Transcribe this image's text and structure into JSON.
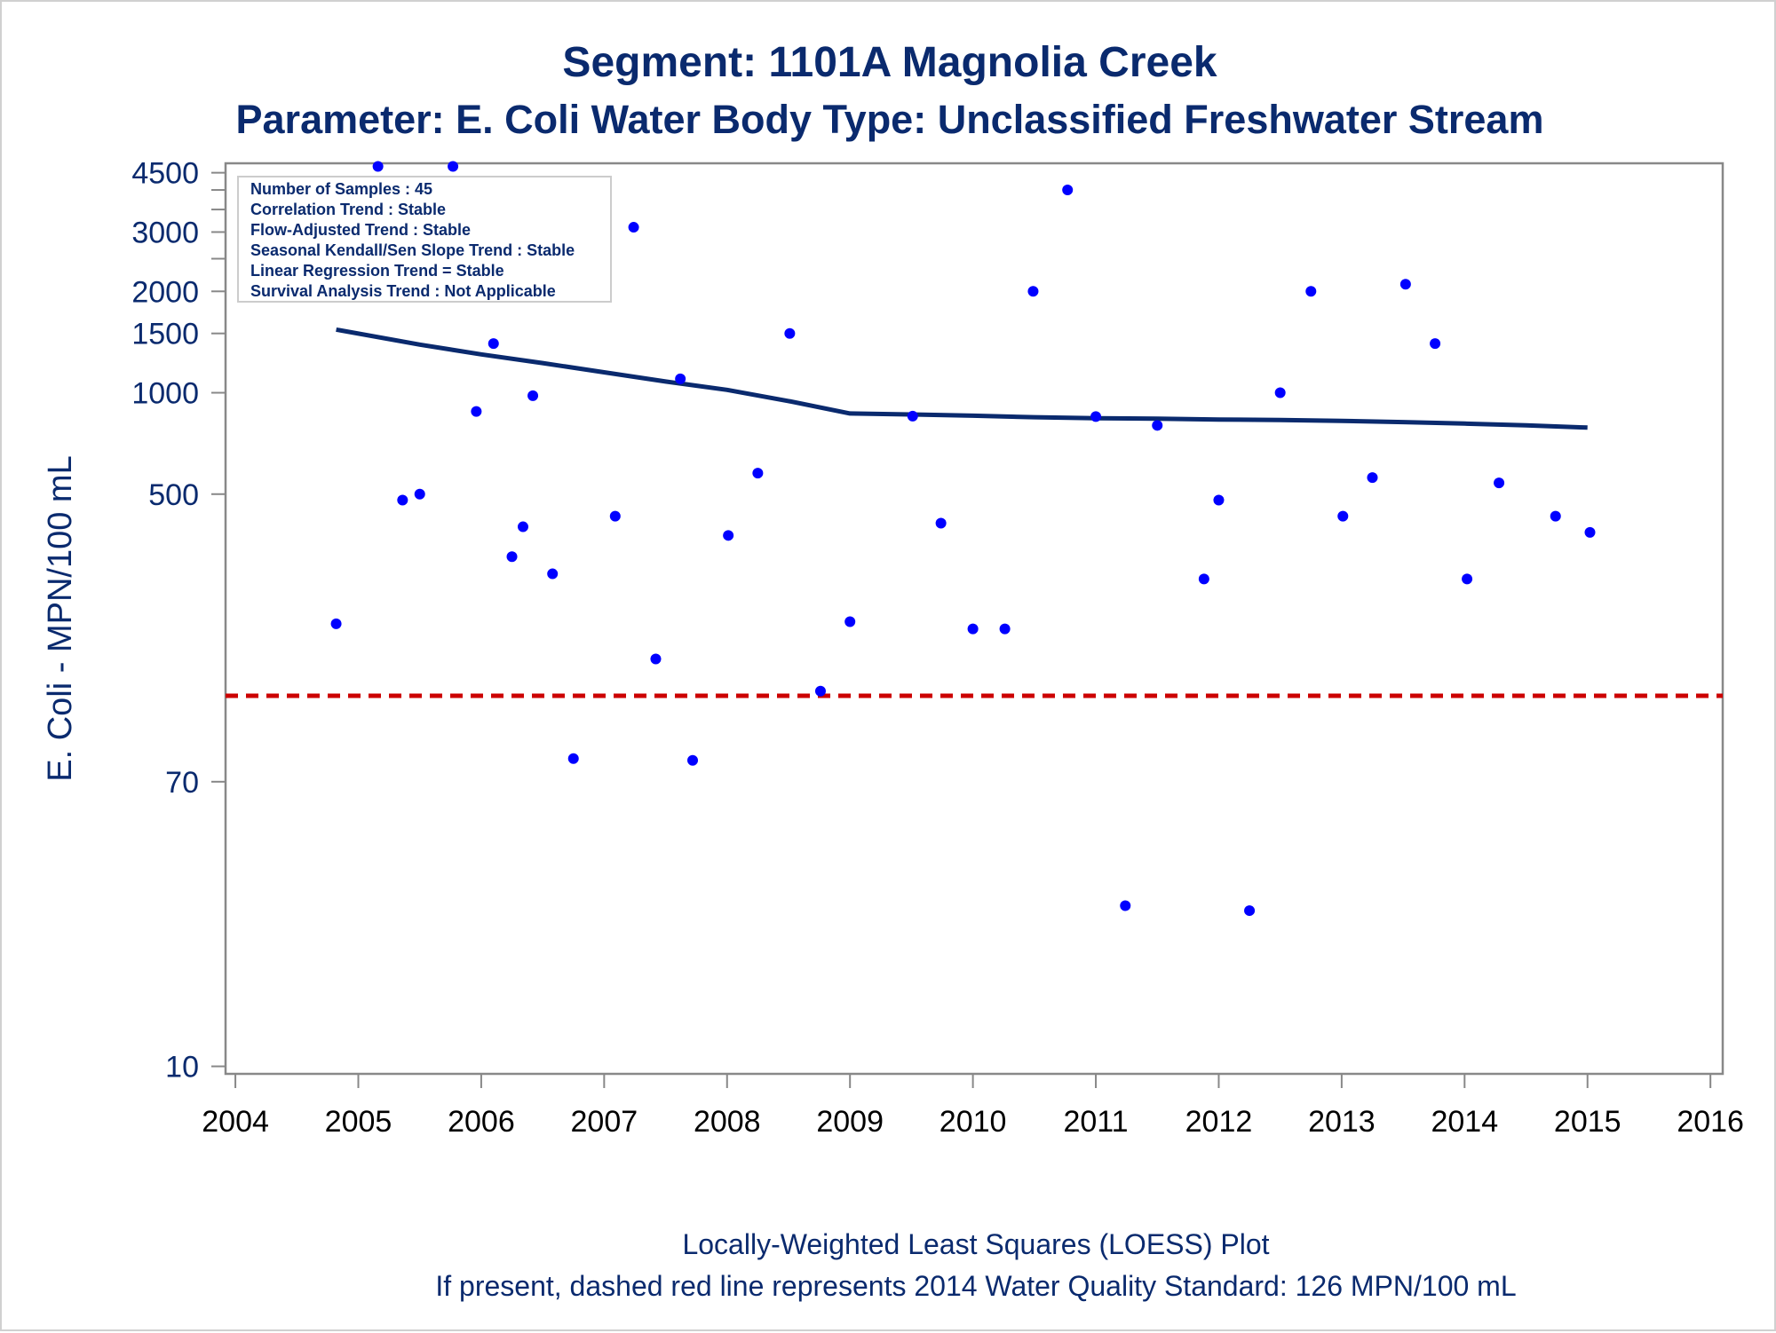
{
  "chart_data": {
    "type": "scatter",
    "title": "Segment: 1101A  Magnolia Creek",
    "subtitle": "Parameter: E. Coli   Water Body Type: Unclassified Freshwater Stream",
    "ylabel": "E. Coli - MPN/100 mL",
    "xlabel": "",
    "yscale": "log",
    "ylim": [
      9.5,
      4800
    ],
    "xlim": [
      2003.92,
      2016.1
    ],
    "y_ticks": [
      10,
      70,
      500,
      1000,
      1500,
      2000,
      3000,
      4500
    ],
    "y_ticks_labels": [
      "10",
      "70",
      "500",
      "1000",
      "1500",
      "2000",
      "3000",
      "4500"
    ],
    "y_minor_ticks": [
      2500,
      3500,
      4000
    ],
    "x_ticks": [
      2004,
      2005,
      2006,
      2007,
      2008,
      2009,
      2010,
      2011,
      2012,
      2013,
      2014,
      2015,
      2016
    ],
    "x_ticks_labels": [
      "2004",
      "2005",
      "2006",
      "2007",
      "2008",
      "2009",
      "2010",
      "2011",
      "2012",
      "2013",
      "2014",
      "2015",
      "2016"
    ],
    "grid": false,
    "legend": "none",
    "info_box": [
      "Number of Samples : 45",
      "Correlation Trend : Stable",
      "Flow-Adjusted Trend : Stable",
      "Seasonal Kendall/Sen Slope Trend : Stable",
      "Linear Regression Trend = Stable",
      "Survival Analysis Trend : Not Applicable"
    ],
    "footer": [
      "Locally-Weighted Least Squares (LOESS) Plot",
      "If present, dashed red line represents 2014 Water Quality Standard: 126 MPN/100 mL"
    ],
    "standard_line": {
      "y": 126,
      "color": "#cc0000"
    },
    "point_color": "#0000ff",
    "line_color": "#0a2a6e",
    "points": [
      {
        "x": 2004.82,
        "y": 206
      },
      {
        "x": 2005.03,
        "y": 2600
      },
      {
        "x": 2005.16,
        "y": 4700
      },
      {
        "x": 2005.36,
        "y": 480
      },
      {
        "x": 2005.5,
        "y": 500
      },
      {
        "x": 2005.77,
        "y": 4700
      },
      {
        "x": 2005.96,
        "y": 880
      },
      {
        "x": 2006.1,
        "y": 1400
      },
      {
        "x": 2006.25,
        "y": 326
      },
      {
        "x": 2006.34,
        "y": 400
      },
      {
        "x": 2006.42,
        "y": 980
      },
      {
        "x": 2006.58,
        "y": 290
      },
      {
        "x": 2006.75,
        "y": 82
      },
      {
        "x": 2007.09,
        "y": 430
      },
      {
        "x": 2007.24,
        "y": 3100
      },
      {
        "x": 2007.42,
        "y": 162
      },
      {
        "x": 2007.62,
        "y": 1100
      },
      {
        "x": 2007.72,
        "y": 81
      },
      {
        "x": 2008.01,
        "y": 377
      },
      {
        "x": 2008.25,
        "y": 577
      },
      {
        "x": 2008.51,
        "y": 1500
      },
      {
        "x": 2008.76,
        "y": 130
      },
      {
        "x": 2009.0,
        "y": 209
      },
      {
        "x": 2009.51,
        "y": 852
      },
      {
        "x": 2009.74,
        "y": 410
      },
      {
        "x": 2010.0,
        "y": 199
      },
      {
        "x": 2010.26,
        "y": 199
      },
      {
        "x": 2010.49,
        "y": 2000
      },
      {
        "x": 2010.77,
        "y": 4000
      },
      {
        "x": 2011.0,
        "y": 850
      },
      {
        "x": 2011.24,
        "y": 30
      },
      {
        "x": 2011.5,
        "y": 800
      },
      {
        "x": 2011.88,
        "y": 280
      },
      {
        "x": 2012.0,
        "y": 480
      },
      {
        "x": 2012.25,
        "y": 29
      },
      {
        "x": 2012.5,
        "y": 1000
      },
      {
        "x": 2012.75,
        "y": 2000
      },
      {
        "x": 2013.01,
        "y": 430
      },
      {
        "x": 2013.25,
        "y": 560
      },
      {
        "x": 2013.52,
        "y": 2100
      },
      {
        "x": 2013.76,
        "y": 1400
      },
      {
        "x": 2014.02,
        "y": 280
      },
      {
        "x": 2014.28,
        "y": 540
      },
      {
        "x": 2014.74,
        "y": 430
      },
      {
        "x": 2015.02,
        "y": 385
      }
    ],
    "loess_line": [
      {
        "x": 2004.82,
        "y": 1540
      },
      {
        "x": 2005.5,
        "y": 1390
      },
      {
        "x": 2006.0,
        "y": 1300
      },
      {
        "x": 2006.5,
        "y": 1225
      },
      {
        "x": 2007.0,
        "y": 1150
      },
      {
        "x": 2007.5,
        "y": 1080
      },
      {
        "x": 2008.0,
        "y": 1020
      },
      {
        "x": 2008.5,
        "y": 945
      },
      {
        "x": 2009.0,
        "y": 868
      },
      {
        "x": 2009.5,
        "y": 862
      },
      {
        "x": 2010.0,
        "y": 855
      },
      {
        "x": 2010.5,
        "y": 846
      },
      {
        "x": 2011.0,
        "y": 840
      },
      {
        "x": 2011.5,
        "y": 838
      },
      {
        "x": 2012.0,
        "y": 833
      },
      {
        "x": 2012.5,
        "y": 830
      },
      {
        "x": 2013.0,
        "y": 825
      },
      {
        "x": 2013.5,
        "y": 818
      },
      {
        "x": 2014.0,
        "y": 810
      },
      {
        "x": 2014.5,
        "y": 800
      },
      {
        "x": 2015.0,
        "y": 788
      }
    ]
  }
}
